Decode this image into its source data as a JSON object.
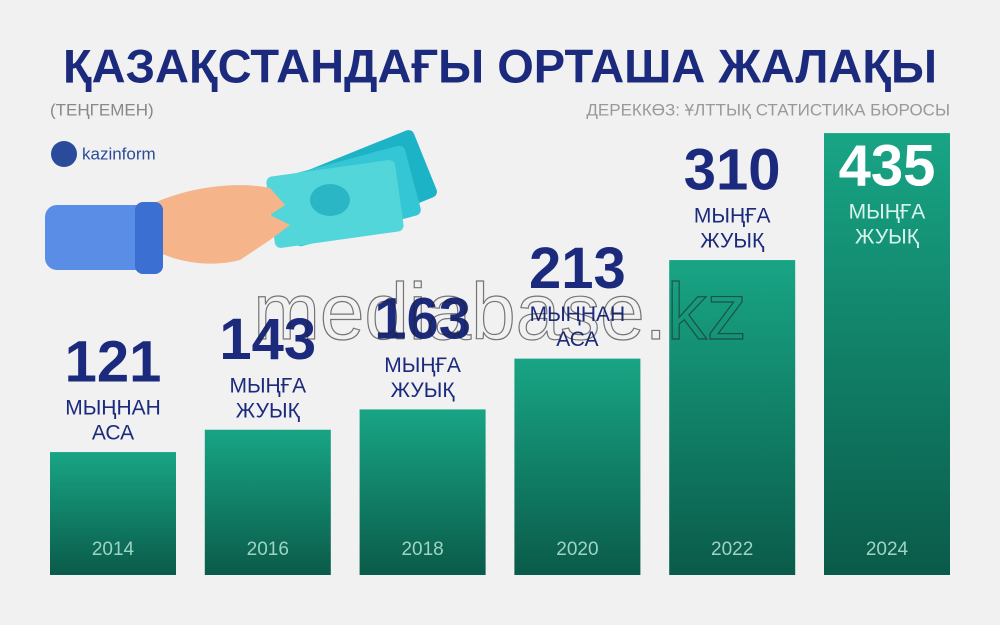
{
  "chart_data": {
    "type": "bar",
    "title": "ҚАЗАҚСТАНДАҒЫ ОРТАША ЖАЛАҚЫ",
    "subtitle": "(ТЕҢГЕМЕН)",
    "source": "ДЕРЕККӨЗ: ҰЛТТЫҚ СТАТИСТИКА БЮРОСЫ",
    "logo": "kazinform",
    "watermark": "mediabase.kz",
    "categories": [
      "2014",
      "2016",
      "2018",
      "2020",
      "2022",
      "2024"
    ],
    "values": [
      121,
      143,
      163,
      213,
      310,
      435
    ],
    "qualifiers": [
      [
        "МЫҢНАН",
        "АСА"
      ],
      [
        "МЫҢҒА",
        "ЖУЫҚ"
      ],
      [
        "МЫҢҒА",
        "ЖУЫҚ"
      ],
      [
        "МЫҢНАН",
        "АСА"
      ],
      [
        "МЫҢҒА",
        "ЖУЫҚ"
      ],
      [
        "МЫҢҒА",
        "ЖУЫҚ"
      ]
    ],
    "ylim": [
      0,
      566
    ],
    "color": "#138a6d"
  }
}
